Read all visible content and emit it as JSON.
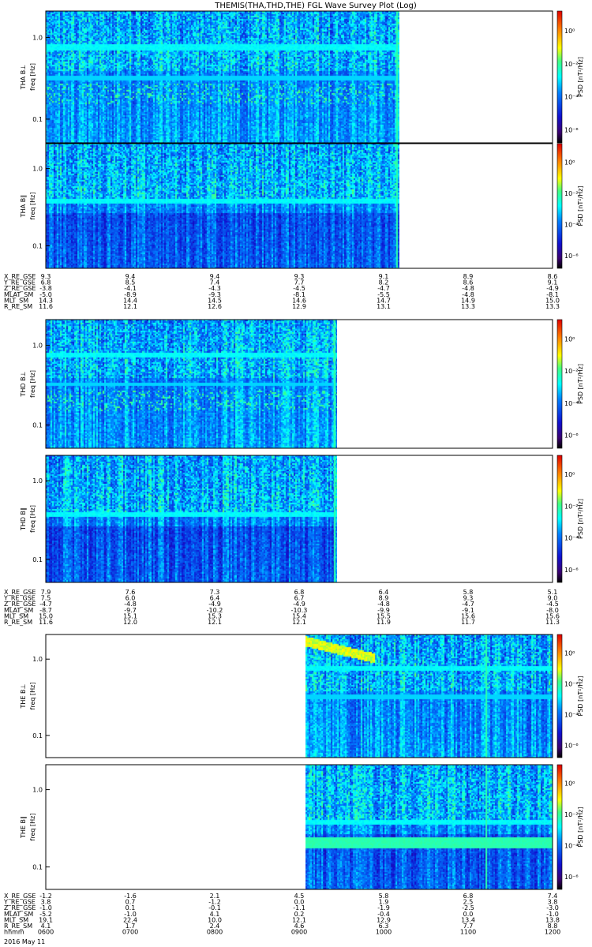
{
  "chart_data": {
    "type": "heatmap",
    "title": "THEMIS(THA,THD,THE) FGL Wave Survey Plot (Log)",
    "date_label": "2016 May 11",
    "yticks": [
      "1.0",
      "0.1"
    ],
    "freq_label": "freq [Hz]",
    "psd_label": "PSD [nT²/Hz]",
    "colorbar_ticks": [
      "10⁰",
      "10⁻²",
      "10⁻⁴",
      "10⁻⁶"
    ],
    "panels": [
      {
        "label": "THA B⊥",
        "group": 0,
        "data_frac": [
          0.0,
          0.6977
        ]
      },
      {
        "label": "THA B∥",
        "group": 0,
        "data_frac": [
          0.0,
          0.6977
        ]
      },
      {
        "label": "THD B⊥",
        "group": 1,
        "data_frac": [
          0.0,
          0.5746
        ]
      },
      {
        "label": "THD B∥",
        "group": 1,
        "data_frac": [
          0.0,
          0.5746
        ]
      },
      {
        "label": "THE B⊥",
        "group": 2,
        "data_frac": [
          0.5126,
          1.0
        ]
      },
      {
        "label": "THE B∥",
        "group": 2,
        "data_frac": [
          0.5126,
          1.0
        ]
      }
    ],
    "ephemeris": [
      {
        "labels": [
          "X_RE_GSE",
          "Y_RE_GSE",
          "Z_RE_GSE",
          "MLAT_SM",
          "MLT_SM",
          "R_RE_SM"
        ],
        "columns": [
          [
            "9.3",
            "6.8",
            "-3.8",
            "-5.0",
            "14.3",
            "11.6"
          ],
          [
            "9.4",
            "8.5",
            "-4.1",
            "-8.9",
            "14.4",
            "12.1"
          ],
          [
            "9.4",
            "7.4",
            "-4.3",
            "-9.3",
            "14.5",
            "12.6"
          ],
          [
            "9.3",
            "7.7",
            "-4.5",
            "-8.1",
            "14.6",
            "12.9"
          ],
          [
            "9.1",
            "8.2",
            "-4.7",
            "-5.5",
            "14.7",
            "13.1"
          ],
          [
            "8.9",
            "8.6",
            "-4.8",
            "-4.8",
            "14.9",
            "13.3"
          ],
          [
            "8.6",
            "9.1",
            "-4.9",
            "-8.1",
            "15.0",
            "13.3"
          ]
        ]
      },
      {
        "labels": [
          "X_RE_GSE",
          "Y_RE_GSE",
          "Z_RE_GSE",
          "MLAT_SM",
          "MLT_SM",
          "R_RE_SM"
        ],
        "columns": [
          [
            "7.9",
            "7.5",
            "-4.7",
            "-8.7",
            "15.0",
            "11.6"
          ],
          [
            "7.6",
            "6.0",
            "-4.8",
            "-9.7",
            "15.1",
            "12.0"
          ],
          [
            "7.3",
            "6.4",
            "-4.9",
            "-10.2",
            "15.3",
            "12.1"
          ],
          [
            "6.8",
            "6.7",
            "-4.9",
            "-10.3",
            "15.4",
            "12.1"
          ],
          [
            "6.4",
            "8.9",
            "-4.8",
            "-9.9",
            "15.5",
            "11.9"
          ],
          [
            "5.8",
            "9.3",
            "-4.7",
            "-9.1",
            "15.6",
            "11.7"
          ],
          [
            "5.1",
            "9.0",
            "-4.5",
            "-8.0",
            "15.6",
            "11.3"
          ]
        ]
      },
      {
        "labels": [
          "X_RE_GSE",
          "Y_RE_GSE",
          "Z_RE_GSE",
          "MLAT_SM",
          "MLT_SM",
          "R_RE_SM",
          "hhmm"
        ],
        "columns": [
          [
            "-1.2",
            "3.8",
            "-1.0",
            "-5.2",
            "19.1",
            "4.1",
            "0600"
          ],
          [
            "-1.6",
            "0.7",
            "0.1",
            "-1.0",
            "22.4",
            "1.7",
            "0700"
          ],
          [
            "2.1",
            "-1.2",
            "-0.1",
            "4.1",
            "10.0",
            "2.4",
            "0800"
          ],
          [
            "4.5",
            "0.0",
            "-1.1",
            "0.2",
            "12.1",
            "4.6",
            "0900"
          ],
          [
            "5.8",
            "1.9",
            "-1.9",
            "-0.4",
            "12.9",
            "6.3",
            "1000"
          ],
          [
            "6.8",
            "2.5",
            "-2.5",
            "0.0",
            "13.4",
            "7.7",
            "1100"
          ],
          [
            "7.4",
            "3.8",
            "-3.0",
            "-1.0",
            "13.8",
            "8.8",
            "1200"
          ]
        ]
      }
    ]
  }
}
